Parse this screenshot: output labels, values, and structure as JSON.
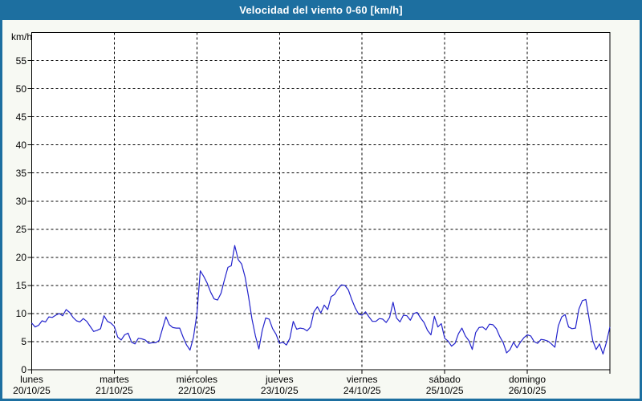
{
  "window": {
    "title": "Velocidad del viento 0-60 [km/h]"
  },
  "colors": {
    "frame_blue": "#1d6fa0",
    "panel_background": "#f7f9f3",
    "plot_background": "#ffffff",
    "line_blue": "#2323cc",
    "grid_black": "#000000",
    "text_black": "#000000"
  },
  "chart_data": {
    "type": "line",
    "title": "Velocidad del viento 0-60 [km/h]",
    "ylabel": "km/h",
    "xlabel": "",
    "ylim": [
      0,
      60
    ],
    "ytick_step": 5,
    "ytick_labels": [
      "0",
      "5",
      "10",
      "15",
      "20",
      "25",
      "30",
      "35",
      "40",
      "45",
      "50",
      "55"
    ],
    "grid": "dashed",
    "legend_position": "none",
    "num_days": 7,
    "points_per_day": 24,
    "x_days": [
      {
        "name": "lunes",
        "date": "20/10/25"
      },
      {
        "name": "martes",
        "date": "21/10/25"
      },
      {
        "name": "miércoles",
        "date": "22/10/25"
      },
      {
        "name": "jueves",
        "date": "23/10/25"
      },
      {
        "name": "viernes",
        "date": "24/10/25"
      },
      {
        "name": "sábado",
        "date": "25/10/25"
      },
      {
        "name": "domingo",
        "date": "26/10/25"
      }
    ],
    "series": [
      {
        "name": "Velocidad del viento (km/h)",
        "values": [
          8.3,
          7.6,
          7.9,
          8.7,
          8.5,
          9.4,
          9.3,
          9.7,
          10.0,
          9.6,
          10.7,
          10.2,
          9.3,
          8.7,
          8.5,
          9.1,
          8.6,
          7.7,
          6.8,
          7.0,
          7.3,
          9.6,
          8.6,
          8.3,
          7.7,
          5.8,
          5.3,
          6.2,
          6.5,
          4.9,
          4.6,
          5.6,
          5.5,
          5.3,
          4.7,
          4.8,
          4.8,
          5.2,
          7.3,
          9.4,
          8.0,
          7.5,
          7.4,
          7.4,
          5.8,
          4.4,
          3.5,
          5.8,
          10.0,
          17.6,
          16.6,
          15.4,
          13.8,
          12.6,
          12.4,
          13.6,
          16.0,
          18.2,
          18.5,
          22.1,
          19.6,
          18.8,
          16.5,
          13.0,
          9.0,
          6.0,
          3.7,
          7.0,
          9.2,
          9.0,
          7.3,
          6.3,
          4.7,
          4.9,
          4.4,
          5.6,
          8.6,
          7.2,
          7.4,
          7.3,
          6.9,
          7.6,
          10.3,
          11.2,
          10.1,
          11.5,
          10.7,
          13.0,
          13.4,
          14.4,
          15.1,
          15.0,
          14.2,
          12.5,
          11.0,
          9.9,
          9.7,
          10.3,
          9.4,
          8.6,
          8.6,
          9.1,
          9.0,
          8.4,
          9.3,
          12.0,
          9.2,
          8.5,
          9.7,
          9.6,
          8.8,
          10.0,
          10.2,
          9.2,
          8.4,
          7.0,
          6.2,
          9.5,
          7.6,
          8.2,
          5.6,
          5.1,
          4.2,
          4.7,
          6.4,
          7.4,
          6.0,
          5.2,
          3.6,
          6.6,
          7.5,
          7.6,
          7.1,
          8.1,
          8.0,
          7.3,
          5.9,
          4.8,
          3.0,
          3.6,
          4.9,
          3.9,
          4.9,
          5.7,
          6.2,
          6.0,
          5.0,
          4.7,
          5.4,
          5.3,
          5.1,
          4.6,
          4.0,
          7.8,
          9.4,
          9.8,
          7.6,
          7.3,
          7.4,
          10.8,
          12.3,
          12.5,
          8.9,
          5.2,
          3.6,
          4.6,
          2.8,
          4.9,
          7.6
        ]
      }
    ]
  }
}
